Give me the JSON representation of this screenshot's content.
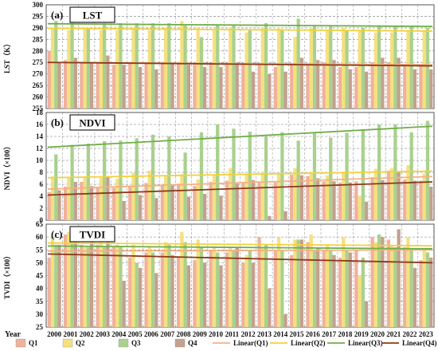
{
  "chart_data": {
    "type": "bar",
    "x_axis_label": "Year",
    "categories": [
      "2000",
      "2001",
      "2002",
      "2003",
      "2004",
      "2005",
      "2006",
      "2007",
      "2008",
      "2009",
      "2010",
      "2011",
      "2012",
      "2013",
      "2014",
      "2015",
      "2016",
      "2017",
      "2018",
      "2019",
      "2020",
      "2021",
      "2022",
      "2023"
    ],
    "legend": {
      "placement": "bottom",
      "entries": [
        "Q1",
        "Q2",
        "Q3",
        "Q4",
        "Linear(Q1)",
        "Linear(Q2)",
        "Linear(Q3)",
        "Linear(Q4)"
      ]
    },
    "colors": {
      "Q1": "#f0b19c",
      "Q2": "#f5e07f",
      "Q3": "#a9d18e",
      "Q4": "#c4a08f",
      "Linear(Q1)": "#f4b183",
      "Linear(Q2)": "#f1d23c",
      "Linear(Q3)": "#70ad47",
      "Linear(Q4)": "#8b3a1a"
    },
    "panels": [
      {
        "label": "(a)",
        "title": "LST",
        "ylabel": "LST（K）",
        "ylim": [
          255,
          300
        ],
        "ticks": [
          255,
          260,
          265,
          270,
          275,
          280,
          285,
          290,
          295,
          300
        ],
        "series": [
          {
            "name": "Q1",
            "values": [
              280,
              276,
              275,
              275,
              274,
              275,
              275,
              275,
              275,
              274,
              274,
              274,
              274,
              274,
              273,
              274,
              274,
              275,
              273,
              273,
              275,
              275,
              274,
              274
            ]
          },
          {
            "name": "Q2",
            "values": [
              290,
              289,
              290,
              289,
              289,
              290,
              289,
              290,
              293,
              290,
              289,
              290,
              288,
              290,
              290,
              286,
              290,
              289,
              290,
              289,
              288,
              288,
              289,
              289
            ]
          },
          {
            "name": "Q3",
            "values": [
              293,
              293,
              290,
              292,
              292,
              292,
              292,
              292,
              291,
              286,
              291,
              291,
              289,
              292,
              289,
              294,
              291,
              291,
              289,
              290,
              291,
              291,
              291,
              290
            ]
          },
          {
            "name": "Q4",
            "values": [
              275,
              277,
              275,
              278,
              274,
              273,
              272,
              275,
              274,
              273,
              273,
              275,
              271,
              270,
              271,
              277,
              276,
              276,
              272,
              271,
              277,
              277,
              272,
              272
            ]
          }
        ],
        "trends": [
          {
            "name": "Linear(Q1)",
            "start": 275.0,
            "end": 274.0
          },
          {
            "name": "Linear(Q2)",
            "start": 289.8,
            "end": 288.6
          },
          {
            "name": "Linear(Q3)",
            "start": 291.8,
            "end": 290.6
          },
          {
            "name": "Linear(Q4)",
            "start": 275.0,
            "end": 273.5
          }
        ]
      },
      {
        "label": "(b)",
        "title": "NDVI",
        "ylabel": "NDVI（×100）",
        "ylim": [
          0,
          18
        ],
        "ticks": [
          0,
          2,
          4,
          6,
          8,
          10,
          12,
          14,
          16,
          18
        ],
        "series": [
          {
            "name": "Q1",
            "values": [
              4.7,
              5.6,
              6.4,
              5.6,
              5.4,
              5.8,
              6.2,
              5.8,
              6.1,
              5.7,
              6.4,
              6.6,
              6.2,
              6.5,
              6.3,
              7.6,
              7.4,
              6.5,
              6.3,
              6.5,
              7.2,
              8.3,
              6.8,
              6.6
            ]
          },
          {
            "name": "Q2",
            "values": [
              7.3,
              7.2,
              7.3,
              7.1,
              6.9,
              7.9,
              8.3,
              7.4,
              7.7,
              6.8,
              7.6,
              8.7,
              7.6,
              8.0,
              7.8,
              8.7,
              8.0,
              7.5,
              8.1,
              4.1,
              8.6,
              8.7,
              9.2,
              7.8
            ]
          },
          {
            "name": "Q3",
            "values": [
              11.0,
              12.6,
              12.8,
              13.2,
              13.3,
              13.7,
              14.3,
              14.0,
              11.3,
              14.7,
              16.0,
              15.3,
              14.8,
              14.0,
              14.7,
              13.3,
              14.5,
              13.8,
              14.6,
              15.2,
              16.0,
              16.0,
              14.7,
              16.6
            ]
          },
          {
            "name": "Q4",
            "values": [
              5.0,
              6.4,
              5.7,
              7.2,
              3.2,
              4.2,
              3.7,
              5.9,
              3.9,
              4.4,
              4.1,
              6.1,
              6.7,
              0.7,
              1.5,
              7.5,
              7.0,
              6.5,
              6.3,
              3.1,
              6.7,
              8.0,
              6.6,
              5.6
            ]
          }
        ],
        "trends": [
          {
            "name": "Linear(Q1)",
            "start": 5.2,
            "end": 7.3
          },
          {
            "name": "Linear(Q2)",
            "start": 7.1,
            "end": 8.2
          },
          {
            "name": "Linear(Q3)",
            "start": 12.2,
            "end": 15.7
          },
          {
            "name": "Linear(Q4)",
            "start": 4.2,
            "end": 6.4
          }
        ]
      },
      {
        "label": "(c)",
        "title": "TVDI",
        "ylabel": "TVDI（×100）",
        "ylim": [
          25,
          65
        ],
        "ticks": [
          25,
          30,
          35,
          40,
          45,
          50,
          55,
          60,
          65
        ],
        "series": [
          {
            "name": "Q1",
            "values": [
              52,
              61,
              57,
              57,
              56,
              52,
              54,
              54,
              52,
              51,
              55,
              54,
              50,
              60,
              55,
              53,
              58,
              55,
              52,
              55,
              60,
              59,
              56,
              51
            ]
          },
          {
            "name": "Q2",
            "values": [
              60,
              62,
              56,
              59,
              57,
              57,
              56,
              58,
              62,
              59,
              56,
              56,
              53,
              56,
              60,
              59,
              61,
              57,
              60,
              45,
              58,
              57,
              60,
              55
            ]
          },
          {
            "name": "Q3",
            "values": [
              57,
              60,
              56,
              56,
              56,
              50,
              54,
              57,
              58,
              56,
              54,
              55,
              55,
              57,
              55,
              59,
              55,
              55,
              55,
              52,
              61,
              56,
              55,
              54
            ]
          },
          {
            "name": "Q4",
            "values": [
              57,
              62,
              59,
              58,
              43,
              48,
              46,
              53,
              49,
              50,
              49,
              56,
              50,
              40,
              30,
              59,
              56,
              53,
              54,
              35,
              60,
              63,
              48,
              52
            ]
          }
        ],
        "trends": [
          {
            "name": "Linear(Q1)",
            "start": 54.5,
            "end": 55.0
          },
          {
            "name": "Linear(Q2)",
            "start": 57.7,
            "end": 56.6
          },
          {
            "name": "Linear(Q3)",
            "start": 56.5,
            "end": 55.4
          },
          {
            "name": "Linear(Q4)",
            "start": 53.4,
            "end": 50.0
          }
        ]
      }
    ]
  }
}
